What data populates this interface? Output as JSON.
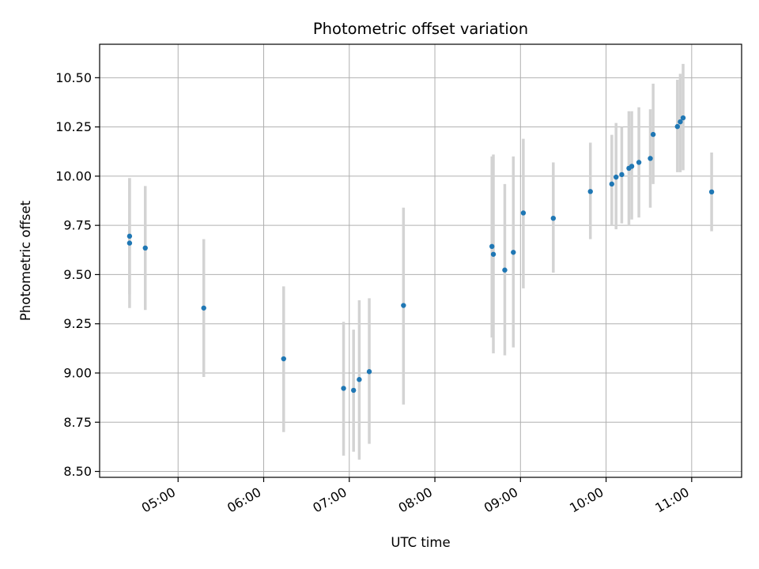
{
  "chart_data": {
    "type": "scatter",
    "title": "Photometric offset variation",
    "xlabel": "UTC time",
    "ylabel": "Photometric offset",
    "x_ticks": [
      "05:00",
      "06:00",
      "07:00",
      "08:00",
      "09:00",
      "10:00",
      "11:00"
    ],
    "y_ticks": [
      "8.50",
      "8.75",
      "9.00",
      "9.25",
      "9.50",
      "9.75",
      "10.00",
      "10.25",
      "10.50"
    ],
    "xlim": [
      "04:05",
      "11:35"
    ],
    "ylim": [
      8.47,
      10.67
    ],
    "grid": true,
    "marker_color": "#1f77b4",
    "errorbar_color": "#d3d3d3",
    "points": [
      {
        "time": "04:26",
        "y": 9.695,
        "low": 9.4,
        "high": 9.99
      },
      {
        "time": "04:26",
        "y": 9.66,
        "low": 9.33,
        "high": 9.99
      },
      {
        "time": "04:37",
        "y": 9.635,
        "low": 9.32,
        "high": 9.95
      },
      {
        "time": "05:18",
        "y": 9.33,
        "low": 8.98,
        "high": 9.68
      },
      {
        "time": "06:14",
        "y": 9.072,
        "low": 8.7,
        "high": 9.44
      },
      {
        "time": "06:56",
        "y": 8.922,
        "low": 8.58,
        "high": 9.26
      },
      {
        "time": "07:03",
        "y": 8.912,
        "low": 8.6,
        "high": 9.22
      },
      {
        "time": "07:07",
        "y": 8.967,
        "low": 8.56,
        "high": 9.37
      },
      {
        "time": "07:14",
        "y": 9.007,
        "low": 8.64,
        "high": 9.38
      },
      {
        "time": "07:38",
        "y": 9.343,
        "low": 8.84,
        "high": 9.84
      },
      {
        "time": "08:40",
        "y": 9.643,
        "low": 9.18,
        "high": 10.1
      },
      {
        "time": "08:41",
        "y": 9.603,
        "low": 9.1,
        "high": 10.11
      },
      {
        "time": "08:49",
        "y": 9.523,
        "low": 9.09,
        "high": 9.96
      },
      {
        "time": "08:55",
        "y": 9.613,
        "low": 9.13,
        "high": 10.1
      },
      {
        "time": "09:02",
        "y": 9.813,
        "low": 9.43,
        "high": 10.19
      },
      {
        "time": "09:23",
        "y": 9.786,
        "low": 9.51,
        "high": 10.07
      },
      {
        "time": "09:49",
        "y": 9.922,
        "low": 9.68,
        "high": 10.17
      },
      {
        "time": "10:04",
        "y": 9.96,
        "low": 9.75,
        "high": 10.21
      },
      {
        "time": "10:07",
        "y": 9.995,
        "low": 9.73,
        "high": 10.27
      },
      {
        "time": "10:11",
        "y": 10.008,
        "low": 9.76,
        "high": 10.25
      },
      {
        "time": "10:16",
        "y": 10.04,
        "low": 9.75,
        "high": 10.33
      },
      {
        "time": "10:18",
        "y": 10.05,
        "low": 9.78,
        "high": 10.33
      },
      {
        "time": "10:23",
        "y": 10.07,
        "low": 9.79,
        "high": 10.35
      },
      {
        "time": "10:31",
        "y": 10.09,
        "low": 9.84,
        "high": 10.34
      },
      {
        "time": "10:33",
        "y": 10.212,
        "low": 9.96,
        "high": 10.47
      },
      {
        "time": "10:50",
        "y": 10.252,
        "low": 10.02,
        "high": 10.49
      },
      {
        "time": "10:52",
        "y": 10.276,
        "low": 10.02,
        "high": 10.52
      },
      {
        "time": "10:54",
        "y": 10.296,
        "low": 10.03,
        "high": 10.57
      },
      {
        "time": "11:14",
        "y": 9.92,
        "low": 9.72,
        "high": 10.12
      }
    ]
  }
}
